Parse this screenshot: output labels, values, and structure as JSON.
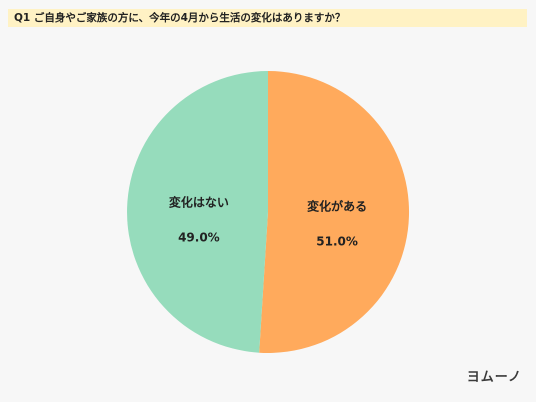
{
  "chart_data": {
    "type": "pie",
    "title": "Q1 ご自身やご家族の方に、今年の4月から生活の変化はありますか？",
    "categories": [
      "変化がある",
      "変化はない"
    ],
    "values": [
      51.0,
      49.0
    ],
    "value_labels": [
      "51.0%",
      "49.0%"
    ],
    "colors": [
      "#ffaa5c",
      "#96dcbc"
    ],
    "start": "top",
    "direction": "clockwise"
  },
  "colors": {
    "background": "#f7f7f7",
    "title_highlight": "#fff2c4",
    "text": "#222222"
  },
  "logo": "ヨムーノ"
}
